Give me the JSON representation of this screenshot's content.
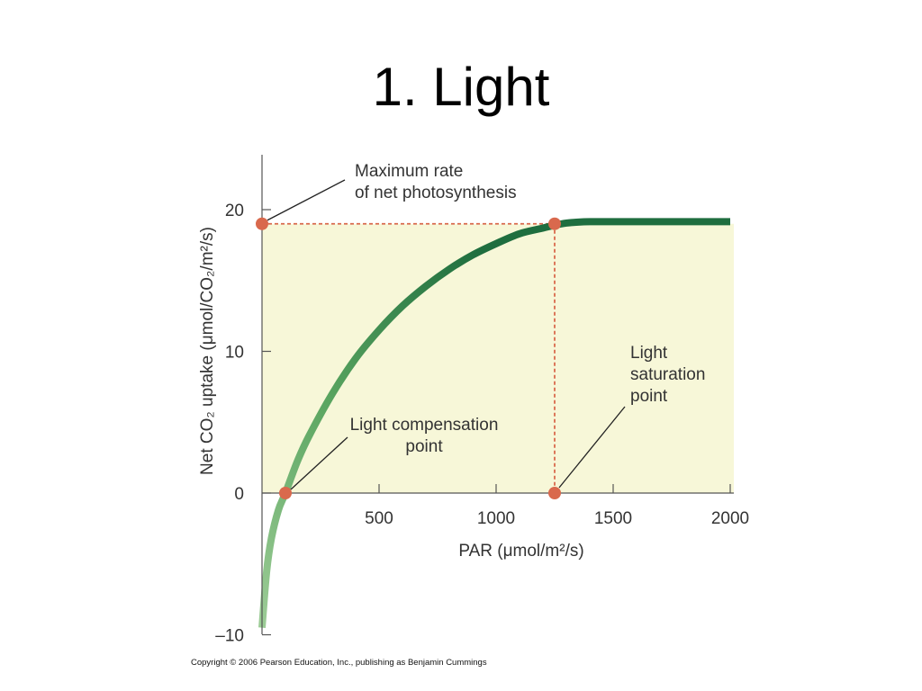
{
  "slide": {
    "title": "1.  Light",
    "copyright": "Copyright © 2006 Pearson Education, Inc., publishing as Benjamin Cummings"
  },
  "chart_data": {
    "type": "line",
    "xlabel": "PAR (μmol/m²/s)",
    "ylabel": "Net CO₂ uptake (μmol/CO₂/m²/s)",
    "xlim": [
      0,
      2000
    ],
    "ylim": [
      -10,
      24
    ],
    "x_ticks": [
      500,
      1000,
      1500,
      2000
    ],
    "x_tick_labels": [
      "500",
      "1000",
      "1500",
      "2000"
    ],
    "y_ticks": [
      -10,
      0,
      10,
      20
    ],
    "y_tick_labels": [
      "–10",
      "0",
      "10",
      "20"
    ],
    "grid": false,
    "fill_color": "#f7f7d8",
    "curve_color_light": "#9ccc96",
    "curve_color_dark": "#1f6e3f",
    "marker_color": "#d9694d",
    "series": [
      {
        "x": [
          0,
          20,
          40,
          70,
          100,
          150,
          200,
          300,
          400,
          500,
          600,
          700,
          800,
          900,
          1000,
          1100,
          1200,
          1250,
          1300,
          1350,
          1400,
          1500,
          1600,
          1800,
          2000
        ],
        "values": [
          -9.5,
          -5.5,
          -3.2,
          -1.2,
          0,
          2.2,
          4.0,
          7.0,
          9.5,
          11.5,
          13.2,
          14.6,
          15.8,
          16.8,
          17.6,
          18.3,
          18.7,
          18.9,
          19.05,
          19.12,
          19.15,
          19.15,
          19.15,
          19.15,
          19.15
        ]
      }
    ],
    "markers": [
      {
        "x": 0,
        "y": 19.0
      },
      {
        "x": 1250,
        "y": 19.0
      },
      {
        "x": 100,
        "y": 0
      },
      {
        "x": 1250,
        "y": 0
      }
    ],
    "annotations": [
      {
        "lines": [
          "Maximum rate",
          "of net photosynthesis"
        ],
        "target": {
          "x": 0,
          "y": 19.0
        }
      },
      {
        "lines": [
          "Light compensation",
          "point"
        ],
        "target": {
          "x": 100,
          "y": 0
        }
      },
      {
        "lines": [
          "Light",
          "saturation",
          "point"
        ],
        "target": {
          "x": 1250,
          "y": 0
        }
      }
    ],
    "reference_lines": [
      {
        "from": {
          "x": 0,
          "y": 19.0
        },
        "to": {
          "x": 1250,
          "y": 19.0
        }
      },
      {
        "from": {
          "x": 1250,
          "y": 19.0
        },
        "to": {
          "x": 1250,
          "y": 0
        }
      }
    ]
  }
}
